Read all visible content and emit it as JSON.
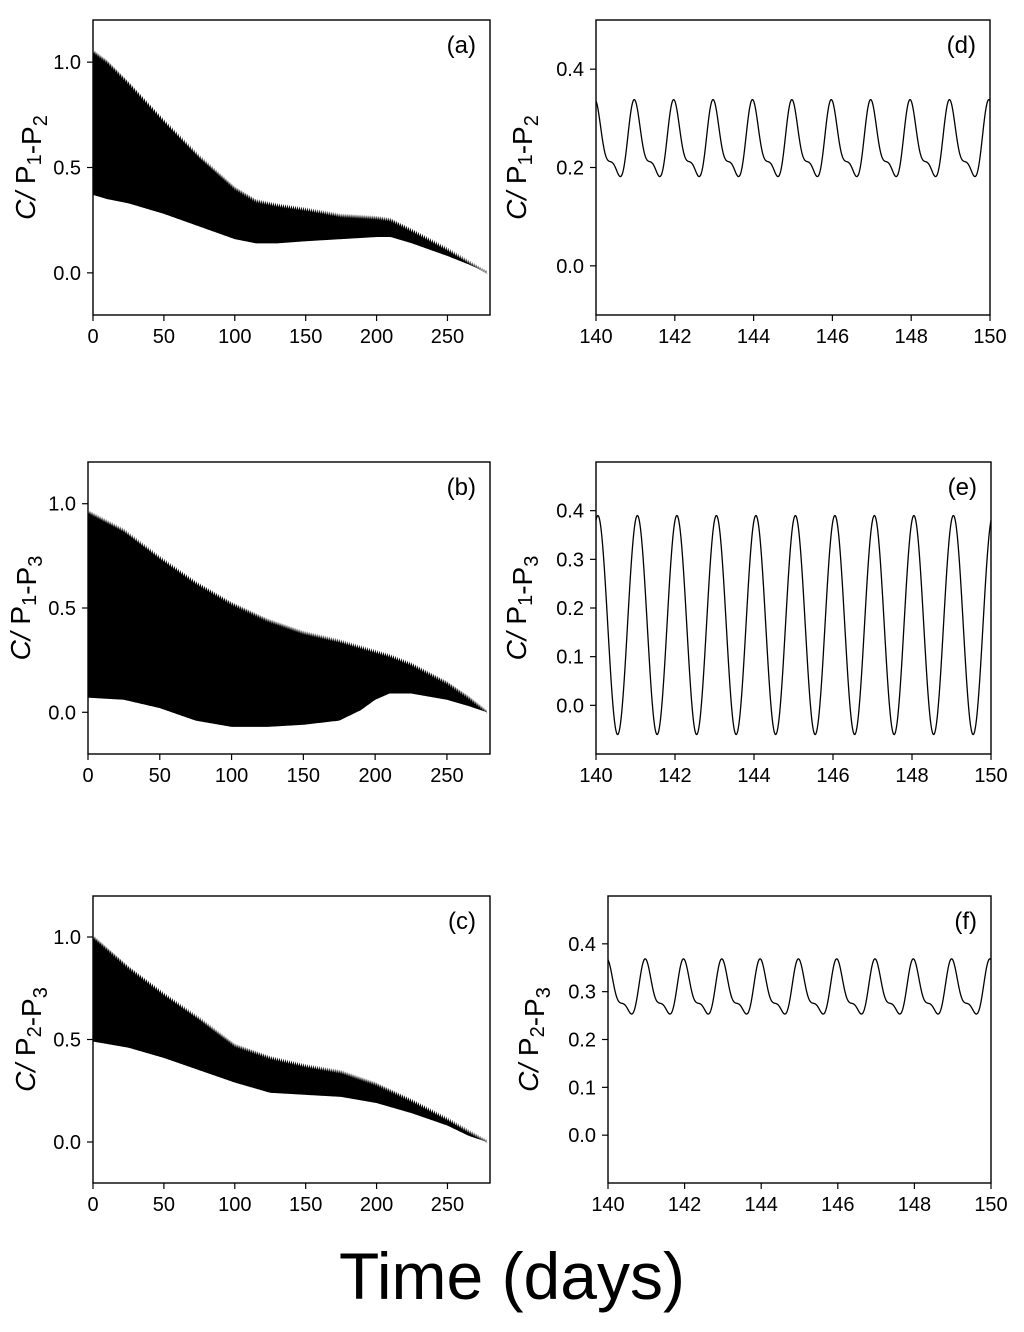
{
  "figure": {
    "x_title": "Time (days)"
  },
  "chart_data": [
    {
      "id": "a",
      "type": "area",
      "panel_label": "(a)",
      "ylabel": "C/ P1-P2",
      "xlim": [
        0,
        280
      ],
      "ylim": [
        -0.2,
        1.2
      ],
      "xticks": [
        0,
        50,
        100,
        150,
        200,
        250
      ],
      "yticks": [
        0.0,
        0.5,
        1.0
      ],
      "xtick_labels": [
        "0",
        "50",
        "100",
        "150",
        "200",
        "250"
      ],
      "ytick_labels": [
        "0.0",
        "0.5",
        "1.0"
      ],
      "envelope": {
        "x": [
          0,
          10,
          25,
          50,
          75,
          100,
          115,
          130,
          150,
          175,
          200,
          210,
          225,
          250,
          265,
          275,
          278
        ],
        "upper": [
          1.05,
          1.0,
          0.9,
          0.72,
          0.55,
          0.4,
          0.34,
          0.32,
          0.3,
          0.27,
          0.26,
          0.25,
          0.2,
          0.11,
          0.05,
          0.01,
          0.0
        ],
        "lower": [
          0.37,
          0.35,
          0.33,
          0.28,
          0.22,
          0.16,
          0.14,
          0.14,
          0.15,
          0.16,
          0.17,
          0.17,
          0.14,
          0.08,
          0.04,
          0.01,
          0.0
        ]
      }
    },
    {
      "id": "b",
      "type": "area",
      "panel_label": "(b)",
      "ylabel": "C/ P1-P3",
      "xlim": [
        0,
        280
      ],
      "ylim": [
        -0.2,
        1.2
      ],
      "xticks": [
        0,
        50,
        100,
        150,
        200,
        250
      ],
      "yticks": [
        0.0,
        0.5,
        1.0
      ],
      "xtick_labels": [
        "0",
        "50",
        "100",
        "150",
        "200",
        "250"
      ],
      "ytick_labels": [
        "0.0",
        "0.5",
        "1.0"
      ],
      "envelope": {
        "x": [
          0,
          25,
          50,
          75,
          100,
          125,
          150,
          175,
          190,
          200,
          210,
          225,
          250,
          265,
          278
        ],
        "upper": [
          0.96,
          0.87,
          0.74,
          0.62,
          0.52,
          0.44,
          0.38,
          0.34,
          0.31,
          0.29,
          0.27,
          0.23,
          0.14,
          0.07,
          0.0
        ],
        "lower": [
          0.07,
          0.06,
          0.02,
          -0.04,
          -0.07,
          -0.07,
          -0.06,
          -0.04,
          0.01,
          0.06,
          0.09,
          0.09,
          0.06,
          0.03,
          0.0
        ]
      }
    },
    {
      "id": "c",
      "type": "area",
      "panel_label": "(c)",
      "ylabel": "C/ P2-P3",
      "xlim": [
        0,
        280
      ],
      "ylim": [
        -0.2,
        1.2
      ],
      "xticks": [
        0,
        50,
        100,
        150,
        200,
        250
      ],
      "yticks": [
        0.0,
        0.5,
        1.0
      ],
      "xtick_labels": [
        "0",
        "50",
        "100",
        "150",
        "200",
        "250"
      ],
      "ytick_labels": [
        "0.0",
        "0.5",
        "1.0"
      ],
      "envelope": {
        "x": [
          0,
          25,
          50,
          75,
          100,
          125,
          150,
          175,
          200,
          225,
          250,
          265,
          278
        ],
        "upper": [
          1.0,
          0.85,
          0.72,
          0.6,
          0.47,
          0.41,
          0.37,
          0.34,
          0.28,
          0.2,
          0.11,
          0.05,
          0.0
        ],
        "lower": [
          0.49,
          0.46,
          0.41,
          0.35,
          0.29,
          0.24,
          0.23,
          0.22,
          0.19,
          0.14,
          0.08,
          0.03,
          0.0
        ]
      }
    },
    {
      "id": "d",
      "type": "line",
      "panel_label": "(d)",
      "ylabel": "C/ P1-P2",
      "xlim": [
        140,
        150
      ],
      "ylim": [
        -0.1,
        0.5
      ],
      "xticks": [
        140,
        142,
        144,
        146,
        148,
        150
      ],
      "yticks": [
        0.0,
        0.2,
        0.4
      ],
      "xtick_labels": [
        "140",
        "142",
        "144",
        "146",
        "148",
        "150"
      ],
      "ytick_labels": [
        "0.0",
        "0.2",
        "0.4"
      ],
      "oscillation": {
        "period_days": 1.0,
        "peak": 0.34,
        "trough": 0.15,
        "secondary_peak": 0.27,
        "secondary_trough": 0.23
      }
    },
    {
      "id": "e",
      "type": "line",
      "panel_label": "(e)",
      "ylabel": "C/ P1-P3",
      "xlim": [
        140,
        150
      ],
      "ylim": [
        -0.1,
        0.5
      ],
      "xticks": [
        140,
        142,
        144,
        146,
        148,
        150
      ],
      "yticks": [
        0.0,
        0.1,
        0.2,
        0.3,
        0.4
      ],
      "xtick_labels": [
        "140",
        "142",
        "144",
        "146",
        "148",
        "150"
      ],
      "ytick_labels": [
        "0.0",
        "0.1",
        "0.2",
        "0.3",
        "0.4"
      ],
      "oscillation": {
        "period_days": 1.0,
        "peak": 0.39,
        "trough": -0.06
      }
    },
    {
      "id": "f",
      "type": "line",
      "panel_label": "(f)",
      "ylabel": "C/ P2-P3",
      "xlim": [
        140,
        150
      ],
      "ylim": [
        -0.1,
        0.5
      ],
      "xticks": [
        140,
        142,
        144,
        146,
        148,
        150
      ],
      "yticks": [
        0.0,
        0.1,
        0.2,
        0.3,
        0.4
      ],
      "xtick_labels": [
        "140",
        "142",
        "144",
        "146",
        "148",
        "150"
      ],
      "ytick_labels": [
        "0.0",
        "0.1",
        "0.2",
        "0.3",
        "0.4"
      ],
      "oscillation": {
        "period_days": 1.0,
        "peak": 0.37,
        "trough": 0.23,
        "secondary_peak": 0.29,
        "secondary_trough": 0.27
      }
    }
  ]
}
